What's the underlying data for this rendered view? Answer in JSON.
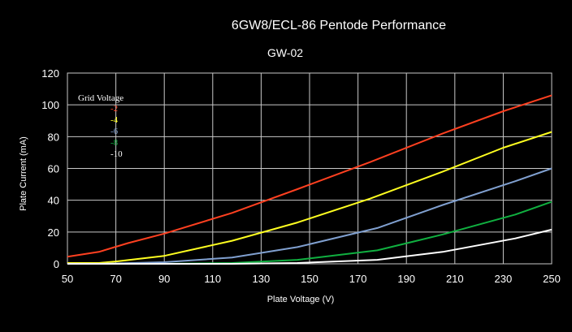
{
  "chart_data": {
    "type": "line",
    "title": "6GW8/ECL-86 Pentode Performance",
    "subtitle": "GW-02",
    "xlabel": "Plate Voltage (V)",
    "ylabel": "Plate Current (mA)",
    "xlim": [
      50,
      250
    ],
    "ylim": [
      0,
      120
    ],
    "xticks": [
      50,
      70,
      90,
      110,
      130,
      150,
      170,
      190,
      210,
      230,
      250
    ],
    "yticks": [
      0,
      20,
      40,
      60,
      80,
      100,
      120
    ],
    "grid": true,
    "legend_title": "Grid Voltage",
    "legend_position": "top-left",
    "series": [
      {
        "name": "-2",
        "color": "#ff4020",
        "x": [
          50,
          63,
          75,
          90,
          118,
          145,
          175,
          205,
          230,
          250
        ],
        "y": [
          4.5,
          7.5,
          13,
          19,
          32,
          47,
          64,
          82,
          96,
          106
        ]
      },
      {
        "name": "-4",
        "color": "#ffff20",
        "x": [
          50,
          63,
          70,
          90,
          118,
          145,
          175,
          205,
          230,
          250
        ],
        "y": [
          0.5,
          0.5,
          1.5,
          5,
          14.5,
          26,
          41,
          58,
          73,
          83
        ]
      },
      {
        "name": "-6",
        "color": "#80a0d0",
        "x": [
          50,
          63,
          90,
          118,
          145,
          178,
          205,
          235,
          250
        ],
        "y": [
          0,
          0,
          1,
          4,
          10.5,
          22.5,
          37,
          52,
          60
        ]
      },
      {
        "name": "-8",
        "color": "#10b040",
        "x": [
          50,
          63,
          90,
          118,
          145,
          178,
          205,
          235,
          250
        ],
        "y": [
          0,
          0,
          0,
          0.5,
          2.5,
          8.5,
          18.5,
          31,
          39
        ]
      },
      {
        "name": "-10",
        "color": "#ffffff",
        "x": [
          50,
          63,
          90,
          118,
          145,
          178,
          205,
          235,
          250
        ],
        "y": [
          0,
          0,
          0,
          0,
          0.5,
          2.5,
          7.5,
          16,
          21.5
        ]
      }
    ]
  }
}
